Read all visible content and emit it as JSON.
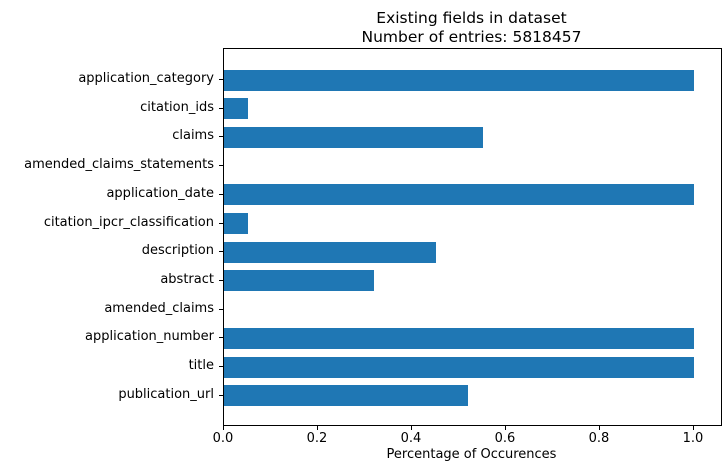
{
  "chart_data": {
    "type": "bar",
    "orientation": "horizontal",
    "title": "Existing fields in dataset",
    "subtitle": "Number of entries: 5818457",
    "categories": [
      "application_category",
      "citation_ids",
      "claims",
      "amended_claims_statements",
      "application_date",
      "citation_ipcr_classification",
      "description",
      "abstract",
      "amended_claims",
      "application_number",
      "title",
      "publication_url"
    ],
    "values": [
      1.0,
      0.05,
      0.55,
      0.0,
      1.0,
      0.05,
      0.45,
      0.32,
      0.0,
      1.0,
      1.0,
      0.52
    ],
    "xlabel": "Percentage of Occurences",
    "ylabel": "",
    "xlim": [
      0.0,
      1.05
    ],
    "xticks": [
      0.0,
      0.2,
      0.4,
      0.6,
      0.8,
      1.0
    ],
    "bar_color": "#1f77b4",
    "axis_color": "#000000",
    "grid": false,
    "legend": "none"
  }
}
